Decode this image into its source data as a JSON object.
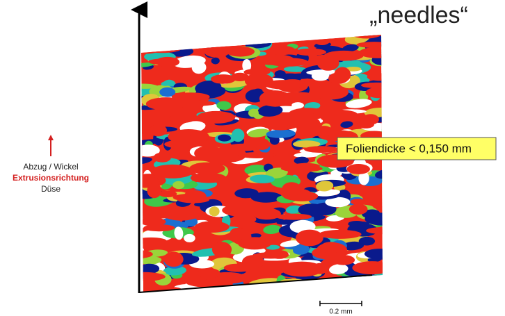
{
  "title": "„needles“",
  "orientation": {
    "top": "Abzug / Wickel",
    "direction": "Extrusionsrichtung",
    "bottom": "Düse"
  },
  "callout": "Foliendicke < 0,150 mm",
  "scale_bar": "0.2 mm"
}
